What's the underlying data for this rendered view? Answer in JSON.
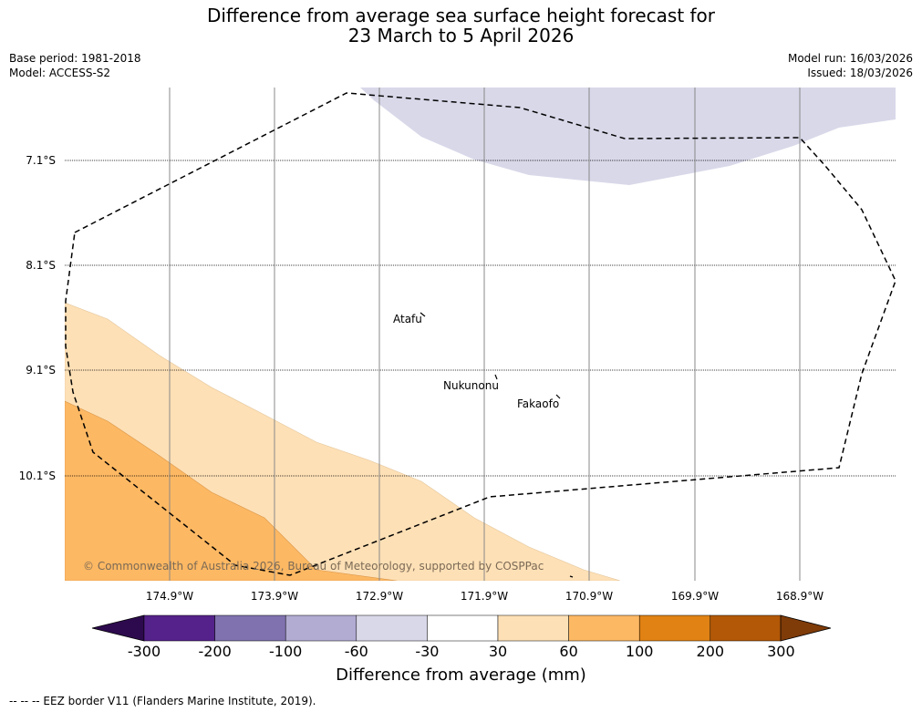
{
  "title_line1": "Difference from average sea surface height forecast for",
  "title_line2": "23 March to 5 April 2026",
  "base_period": "Base period: 1981-2018",
  "model": "Model: ACCESS-S2",
  "model_run": "Model run: 16/03/2026",
  "issued": "Issued: 18/03/2026",
  "latitudes": [
    "7.1°S",
    "8.1°S",
    "9.1°S",
    "10.1°S"
  ],
  "longitudes": [
    "174.9°W",
    "173.9°W",
    "172.9°W",
    "171.9°W",
    "170.9°W",
    "169.9°W",
    "168.9°W"
  ],
  "places": [
    "Atafu",
    "Nukunonu",
    "Fakaofo"
  ],
  "copyright": "© Commonwealth of Australia 2026, Bureau of Meteorology, supported by COSPPac",
  "colorbar": {
    "ticks": [
      "-300",
      "-200",
      "-100",
      "-60",
      "-30",
      "30",
      "60",
      "100",
      "200",
      "300"
    ],
    "colors": [
      "#2d0a4e",
      "#54228a",
      "#8072ae",
      "#b2abd2",
      "#d8d8e9",
      "#ffffff",
      "#fee0b6",
      "#fdb863",
      "#e08214",
      "#b35806",
      "#7f3b08"
    ],
    "label": "Difference from average (mm)"
  },
  "footnote": "--  --  -- EEZ border V11 (Flanders Marine Institute, 2019)."
}
